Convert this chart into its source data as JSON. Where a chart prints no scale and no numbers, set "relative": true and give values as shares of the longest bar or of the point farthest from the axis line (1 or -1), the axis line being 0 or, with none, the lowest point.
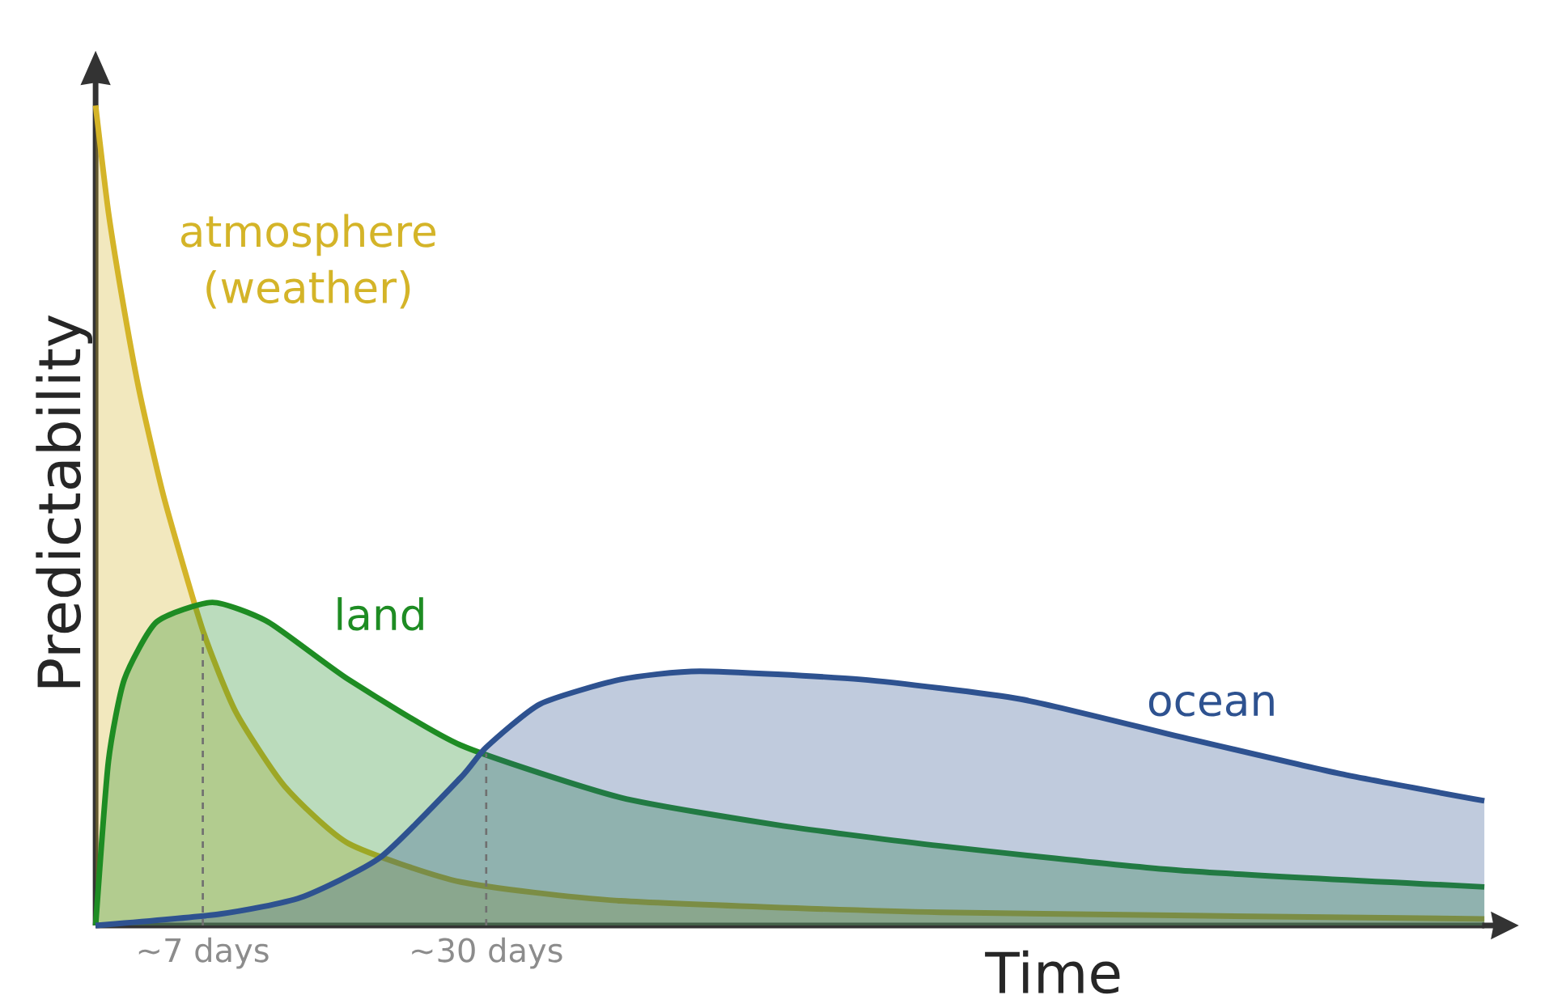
{
  "chart_data": {
    "type": "area",
    "relative": true,
    "xlabel": "Time",
    "ylabel": "Predictability",
    "xlim": [
      -1.7,
      111
    ],
    "xticks": [
      {
        "value": 7,
        "label": "~7 days"
      },
      {
        "value": 30,
        "label": "~30 days"
      }
    ],
    "series": [
      {
        "name": "atmosphere (weather)",
        "color": "#d4b428",
        "x": [
          -1.7,
          -0.66,
          0.63,
          1.94,
          3.88,
          7.0,
          9.69,
          13.63,
          18.82,
          27.95,
          40.91,
          66.84,
          111.0
        ],
        "values": [
          1.0,
          0.87,
          0.75,
          0.645,
          0.52,
          0.36,
          0.26,
          0.17,
          0.1,
          0.053,
          0.03,
          0.016,
          0.008
        ]
      },
      {
        "name": "land",
        "color": "#1e8c23",
        "x": [
          -1.7,
          -0.66,
          0.63,
          3.24,
          7.78,
          12.32,
          18.82,
          27.91,
          40.9,
          53.87,
          66.84,
          86.34,
          111.0
        ],
        "values": [
          0,
          0.2,
          0.3,
          0.37,
          0.394,
          0.37,
          0.3,
          0.22,
          0.156,
          0.122,
          0.097,
          0.067,
          0.047
        ]
      },
      {
        "name": "ocean",
        "color": "#2e5290",
        "x": [
          -1.7,
          8.43,
          14.93,
          21.41,
          27.91,
          29.98,
          34.37,
          40.91,
          47.34,
          60.41,
          73.38,
          86.34,
          99.3,
          111.0
        ],
        "values": [
          0,
          0.014,
          0.034,
          0.083,
          0.18,
          0.217,
          0.27,
          0.3,
          0.31,
          0.3,
          0.276,
          0.23,
          0.185,
          0.152
        ]
      }
    ],
    "ref_lines": [
      {
        "axis": "x",
        "value": 7,
        "color": "#707070",
        "line_style": "dashed"
      },
      {
        "axis": "x",
        "value": 30,
        "color": "#707070",
        "line_style": "dashed"
      }
    ]
  }
}
